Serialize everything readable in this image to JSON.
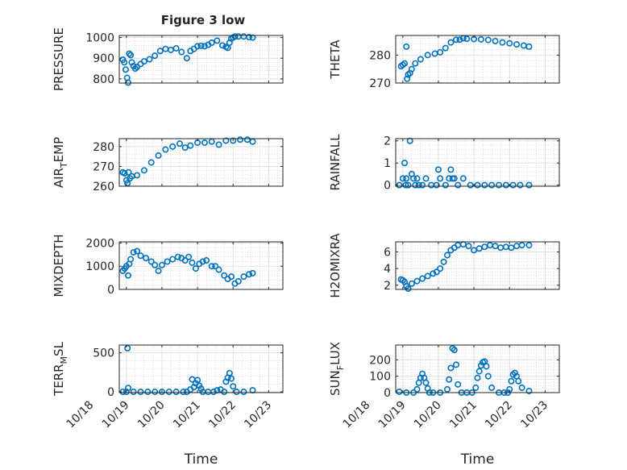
{
  "figure": {
    "title": "Figure 3 low",
    "colors": {
      "marker": "#0072BD",
      "axis": "#262626",
      "grid": "#dcdcdc",
      "minor_grid": "#c8c8c8"
    }
  },
  "chart_data": [
    {
      "type": "scatter",
      "id": "pressure",
      "ylabel": "PRESSURE",
      "ylabel_sub": "",
      "ylim": [
        780,
        1010
      ],
      "yticks": [
        800,
        900,
        1000
      ],
      "ytick_labels": [
        "800",
        "900",
        "1000"
      ],
      "xlim": [
        "10/18.8",
        "10/23.4"
      ],
      "xlabel": "",
      "grid": true,
      "minor_grid": true,
      "x": [
        "10/18.90",
        "10/18.94",
        "10/18.98",
        "10/19.02",
        "10/19.05",
        "10/19.08",
        "10/19.12",
        "10/19.15",
        "10/19.20",
        "10/19.25",
        "10/19.30",
        "10/19.40",
        "10/19.50",
        "10/19.65",
        "10/19.80",
        "10/19.95",
        "10/20.10",
        "10/20.25",
        "10/20.40",
        "10/20.55",
        "10/20.70",
        "10/20.80",
        "10/20.90",
        "10/21.00",
        "10/21.10",
        "10/21.20",
        "10/21.30",
        "10/21.40",
        "10/21.55",
        "10/21.70",
        "10/21.80",
        "10/21.85",
        "10/21.90",
        "10/21.95",
        "10/22.00",
        "10/22.05",
        "10/22.15",
        "10/22.30",
        "10/22.45",
        "10/22.55"
      ],
      "y": [
        893,
        880,
        845,
        805,
        782,
        922,
        915,
        880,
        862,
        850,
        858,
        872,
        885,
        895,
        912,
        935,
        945,
        940,
        948,
        930,
        900,
        935,
        945,
        958,
        960,
        958,
        965,
        975,
        985,
        962,
        955,
        950,
        975,
        995,
        1000,
        1005,
        1005,
        1005,
        1002,
        1000
      ]
    },
    {
      "type": "scatter",
      "id": "theta",
      "ylabel": "THETA",
      "ylabel_sub": "",
      "ylim": [
        270,
        287
      ],
      "yticks": [
        270,
        280
      ],
      "ytick_labels": [
        "270",
        "280"
      ],
      "xlim": [
        "10/18.8",
        "10/23.4"
      ],
      "xlabel": "",
      "grid": true,
      "minor_grid": true,
      "x": [
        "10/18.95",
        "10/19.00",
        "10/19.05",
        "10/19.10",
        "10/19.12",
        "10/19.15",
        "10/19.20",
        "10/19.25",
        "10/19.35",
        "10/19.50",
        "10/19.70",
        "10/19.90",
        "10/20.05",
        "10/20.20",
        "10/20.35",
        "10/20.50",
        "10/20.60",
        "10/20.70",
        "10/20.80",
        "10/21.00",
        "10/21.20",
        "10/21.40",
        "10/21.60",
        "10/21.80",
        "10/22.00",
        "10/22.20",
        "10/22.40",
        "10/22.55"
      ],
      "y": [
        276,
        276.5,
        277,
        283,
        271.5,
        273,
        273.5,
        275,
        277,
        278.5,
        280,
        280.5,
        281,
        282.5,
        284.5,
        285.5,
        285.5,
        286,
        285.8,
        285.7,
        285.6,
        285.4,
        285,
        284.5,
        284.2,
        283.8,
        283.4,
        283
      ]
    },
    {
      "type": "scatter",
      "id": "air_temp",
      "ylabel": "AIR",
      "ylabel_sub": "T",
      "ylabel_suffix": "EMP",
      "ylim": [
        260,
        284
      ],
      "yticks": [
        260,
        270,
        280
      ],
      "ytick_labels": [
        "260",
        "270",
        "280"
      ],
      "xlim": [
        "10/18.8",
        "10/23.4"
      ],
      "xlabel": "",
      "grid": true,
      "minor_grid": true,
      "x": [
        "10/18.90",
        "10/18.95",
        "10/19.00",
        "10/19.03",
        "10/19.06",
        "10/19.10",
        "10/19.15",
        "10/19.30",
        "10/19.50",
        "10/19.70",
        "10/19.90",
        "10/20.10",
        "10/20.30",
        "10/20.50",
        "10/20.65",
        "10/20.80",
        "10/21.00",
        "10/21.20",
        "10/21.40",
        "10/21.60",
        "10/21.80",
        "10/22.00",
        "10/22.20",
        "10/22.40",
        "10/22.55"
      ],
      "y": [
        267,
        266.5,
        263,
        261.5,
        267,
        264,
        265,
        265.5,
        268,
        272,
        275.5,
        278.5,
        280,
        281.5,
        279.5,
        280.5,
        282,
        282,
        282.5,
        281,
        283,
        283,
        283.5,
        283.5,
        282.5
      ]
    },
    {
      "type": "scatter",
      "id": "rainfall",
      "ylabel": "RAINFALL",
      "ylabel_sub": "",
      "ylim": [
        -0.05,
        2.1
      ],
      "yticks": [
        0,
        1,
        2
      ],
      "ytick_labels": [
        "0",
        "1",
        "2"
      ],
      "xlim": [
        "10/18.8",
        "10/23.4"
      ],
      "xlabel": "",
      "grid": true,
      "minor_grid": true,
      "x": [
        "10/18.90",
        "10/19.00",
        "10/19.05",
        "10/19.08",
        "10/19.10",
        "10/19.15",
        "10/19.20",
        "10/19.25",
        "10/19.30",
        "10/19.35",
        "10/19.40",
        "10/19.45",
        "10/19.55",
        "10/19.65",
        "10/19.80",
        "10/19.95",
        "10/20.00",
        "10/20.05",
        "10/20.20",
        "10/20.30",
        "10/20.35",
        "10/20.40",
        "10/20.45",
        "10/20.55",
        "10/20.70",
        "10/20.90",
        "10/21.10",
        "10/21.30",
        "10/21.50",
        "10/21.70",
        "10/21.90",
        "10/22.10",
        "10/22.30",
        "10/22.55"
      ],
      "y": [
        0,
        0.3,
        1.0,
        0,
        0.3,
        0,
        2.0,
        0.5,
        0.3,
        0,
        0.3,
        0,
        0,
        0.3,
        0,
        0,
        0.7,
        0.3,
        0,
        0.3,
        0.7,
        0.3,
        0.3,
        0,
        0.3,
        0,
        0,
        0,
        0,
        0,
        0,
        0,
        0,
        0
      ]
    },
    {
      "type": "scatter",
      "id": "mixdepth",
      "ylabel": "MIXDEPTH",
      "ylabel_sub": "",
      "ylim": [
        0,
        2050
      ],
      "yticks": [
        0,
        1000,
        2000
      ],
      "ytick_labels": [
        "0",
        "1000",
        "2000"
      ],
      "xlim": [
        "10/18.8",
        "10/23.4"
      ],
      "xlabel": "",
      "grid": true,
      "minor_grid": true,
      "x": [
        "10/18.90",
        "10/18.95",
        "10/19.00",
        "10/19.05",
        "10/19.08",
        "10/19.12",
        "10/19.20",
        "10/19.30",
        "10/19.40",
        "10/19.55",
        "10/19.70",
        "10/19.80",
        "10/19.90",
        "10/20.00",
        "10/20.15",
        "10/20.30",
        "10/20.45",
        "10/20.55",
        "10/20.65",
        "10/20.75",
        "10/20.85",
        "10/20.95",
        "10/21.05",
        "10/21.15",
        "10/21.25",
        "10/21.40",
        "10/21.50",
        "10/21.60",
        "10/21.75",
        "10/21.85",
        "10/21.95",
        "10/22.05",
        "10/22.15",
        "10/22.30",
        "10/22.45",
        "10/22.55"
      ],
      "y": [
        800,
        900,
        1000,
        600,
        1100,
        1300,
        1600,
        1650,
        1450,
        1350,
        1200,
        1050,
        800,
        1050,
        1200,
        1300,
        1400,
        1350,
        1250,
        1400,
        1150,
        900,
        1100,
        1200,
        1250,
        1000,
        1000,
        850,
        600,
        450,
        550,
        250,
        350,
        550,
        650,
        700
      ]
    },
    {
      "type": "scatter",
      "id": "h2omixra",
      "ylabel": "H2OMIXRA",
      "ylabel_sub": "",
      "ylim": [
        1.5,
        7.2
      ],
      "yticks": [
        2,
        4,
        6
      ],
      "ytick_labels": [
        "2",
        "4",
        "6"
      ],
      "xlim": [
        "10/18.8",
        "10/23.4"
      ],
      "xlabel": "",
      "grid": true,
      "minor_grid": true,
      "x": [
        "10/18.95",
        "10/19.00",
        "10/19.05",
        "10/19.10",
        "10/19.15",
        "10/19.25",
        "10/19.40",
        "10/19.55",
        "10/19.70",
        "10/19.85",
        "10/19.95",
        "10/20.05",
        "10/20.15",
        "10/20.25",
        "10/20.35",
        "10/20.45",
        "10/20.55",
        "10/20.70",
        "10/20.85",
        "10/21.00",
        "10/21.15",
        "10/21.30",
        "10/21.45",
        "10/21.60",
        "10/21.75",
        "10/21.90",
        "10/22.05",
        "10/22.20",
        "10/22.35",
        "10/22.55"
      ],
      "y": [
        2.7,
        2.6,
        2.4,
        1.9,
        1.6,
        2.2,
        2.5,
        2.8,
        3.1,
        3.4,
        3.6,
        4.0,
        4.8,
        5.6,
        6.2,
        6.5,
        6.8,
        6.9,
        6.7,
        6.2,
        6.4,
        6.6,
        6.8,
        6.7,
        6.5,
        6.6,
        6.5,
        6.7,
        6.8,
        6.8
      ]
    },
    {
      "type": "scatter",
      "id": "terr_msl",
      "ylabel": "TERR",
      "ylabel_sub": "M",
      "ylabel_suffix": "SL",
      "ylim": [
        -10,
        600
      ],
      "yticks": [
        0,
        500
      ],
      "ytick_labels": [
        "0",
        "500"
      ],
      "xlim": [
        "10/18.8",
        "10/23.4"
      ],
      "xlabel": "Time",
      "xticks": [
        "10/18",
        "10/19",
        "10/20",
        "10/21",
        "10/22",
        "10/23"
      ],
      "xtick_labels": [
        "10/18",
        "10/19",
        "10/20",
        "10/21",
        "10/22",
        "10/23"
      ],
      "grid": true,
      "minor_grid": true,
      "x": [
        "10/18.90",
        "10/19.00",
        "10/19.03",
        "10/19.05",
        "10/19.20",
        "10/19.40",
        "10/19.60",
        "10/19.80",
        "10/20.00",
        "10/20.20",
        "10/20.40",
        "10/20.60",
        "10/20.70",
        "10/20.80",
        "10/20.85",
        "10/20.90",
        "10/20.95",
        "10/21.00",
        "10/21.05",
        "10/21.10",
        "10/21.15",
        "10/21.30",
        "10/21.45",
        "10/21.55",
        "10/21.65",
        "10/21.75",
        "10/21.80",
        "10/21.85",
        "10/21.90",
        "10/21.95",
        "10/22.00",
        "10/22.10",
        "10/22.30",
        "10/22.55"
      ],
      "y": [
        0,
        0,
        560,
        50,
        0,
        0,
        0,
        0,
        0,
        0,
        0,
        0,
        0,
        30,
        160,
        60,
        110,
        150,
        80,
        40,
        0,
        0,
        0,
        20,
        30,
        0,
        130,
        180,
        240,
        170,
        70,
        0,
        0,
        20
      ]
    },
    {
      "type": "scatter",
      "id": "sun_flux",
      "ylabel": "SUN",
      "ylabel_sub": "F",
      "ylabel_suffix": "LUX",
      "ylim": [
        0,
        290
      ],
      "yticks": [
        0,
        100,
        200
      ],
      "ytick_labels": [
        "0",
        "100",
        "200"
      ],
      "xlim": [
        "10/18.8",
        "10/23.4"
      ],
      "xlabel": "Time",
      "xticks": [
        "10/18",
        "10/19",
        "10/20",
        "10/21",
        "10/22",
        "10/23"
      ],
      "xtick_labels": [
        "10/18",
        "10/19",
        "10/20",
        "10/21",
        "10/22",
        "10/23"
      ],
      "grid": true,
      "minor_grid": true,
      "x": [
        "10/18.90",
        "10/19.10",
        "10/19.30",
        "10/19.40",
        "10/19.45",
        "10/19.50",
        "10/19.55",
        "10/19.60",
        "10/19.65",
        "10/19.70",
        "10/19.75",
        "10/19.85",
        "10/20.05",
        "10/20.25",
        "10/20.30",
        "10/20.35",
        "10/20.40",
        "10/20.45",
        "10/20.50",
        "10/20.55",
        "10/20.65",
        "10/20.80",
        "10/20.95",
        "10/21.05",
        "10/21.10",
        "10/21.15",
        "10/21.20",
        "10/21.25",
        "10/21.30",
        "10/21.35",
        "10/21.40",
        "10/21.50",
        "10/21.70",
        "10/21.85",
        "10/21.95",
        "10/22.00",
        "10/22.05",
        "10/22.10",
        "10/22.15",
        "10/22.20",
        "10/22.25",
        "10/22.35",
        "10/22.55"
      ],
      "y": [
        5,
        0,
        0,
        20,
        60,
        90,
        115,
        90,
        60,
        25,
        0,
        0,
        0,
        20,
        80,
        150,
        270,
        260,
        170,
        50,
        0,
        0,
        0,
        30,
        90,
        130,
        165,
        185,
        190,
        160,
        100,
        30,
        0,
        0,
        0,
        20,
        70,
        110,
        120,
        100,
        70,
        30,
        10
      ]
    }
  ]
}
